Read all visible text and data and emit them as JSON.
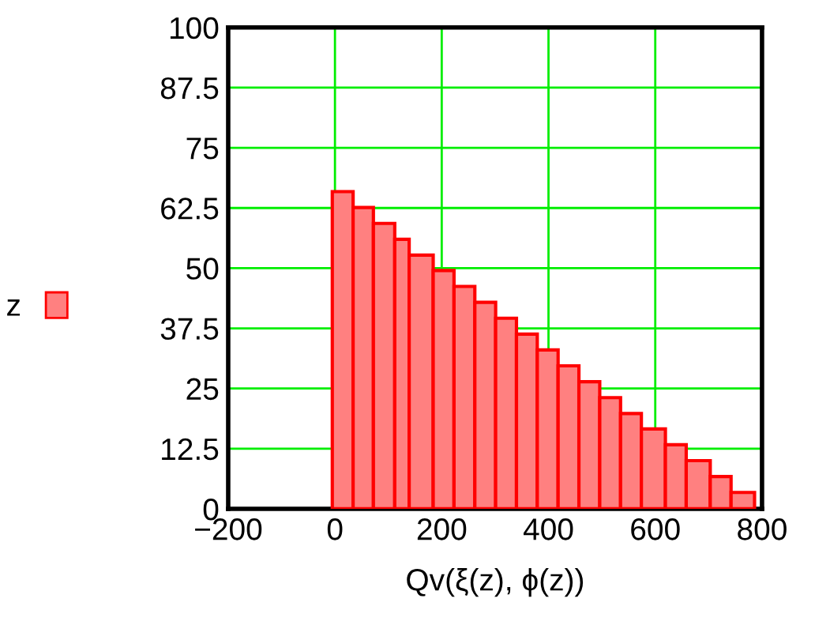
{
  "chart_data": {
    "type": "histogram",
    "xlabel": "Qv(ξ(z), ϕ(z))",
    "bins": [
      -5,
      34,
      72,
      112,
      139,
      184,
      223,
      262,
      301,
      340,
      379,
      418,
      457,
      496,
      535,
      574,
      619,
      658,
      703,
      742,
      786
    ],
    "series": [
      {
        "name": "z",
        "color": "#ff8080",
        "values": [
          65.9,
          62.6,
          59.3,
          56.0,
          52.7,
          49.5,
          46.2,
          42.9,
          39.6,
          36.3,
          33.0,
          29.7,
          26.4,
          23.1,
          19.8,
          16.6,
          13.3,
          10.0,
          6.7,
          3.4
        ]
      }
    ],
    "xlim": [
      -200,
      800
    ],
    "xticks": [
      {
        "value": -200,
        "label": "−200"
      },
      0,
      200,
      400,
      600,
      800
    ],
    "ylim": [
      0,
      100
    ],
    "yticks": [
      0,
      12.5,
      25,
      37.5,
      50,
      62.5,
      75,
      87.5,
      100
    ],
    "grid": true,
    "legend": "left"
  }
}
